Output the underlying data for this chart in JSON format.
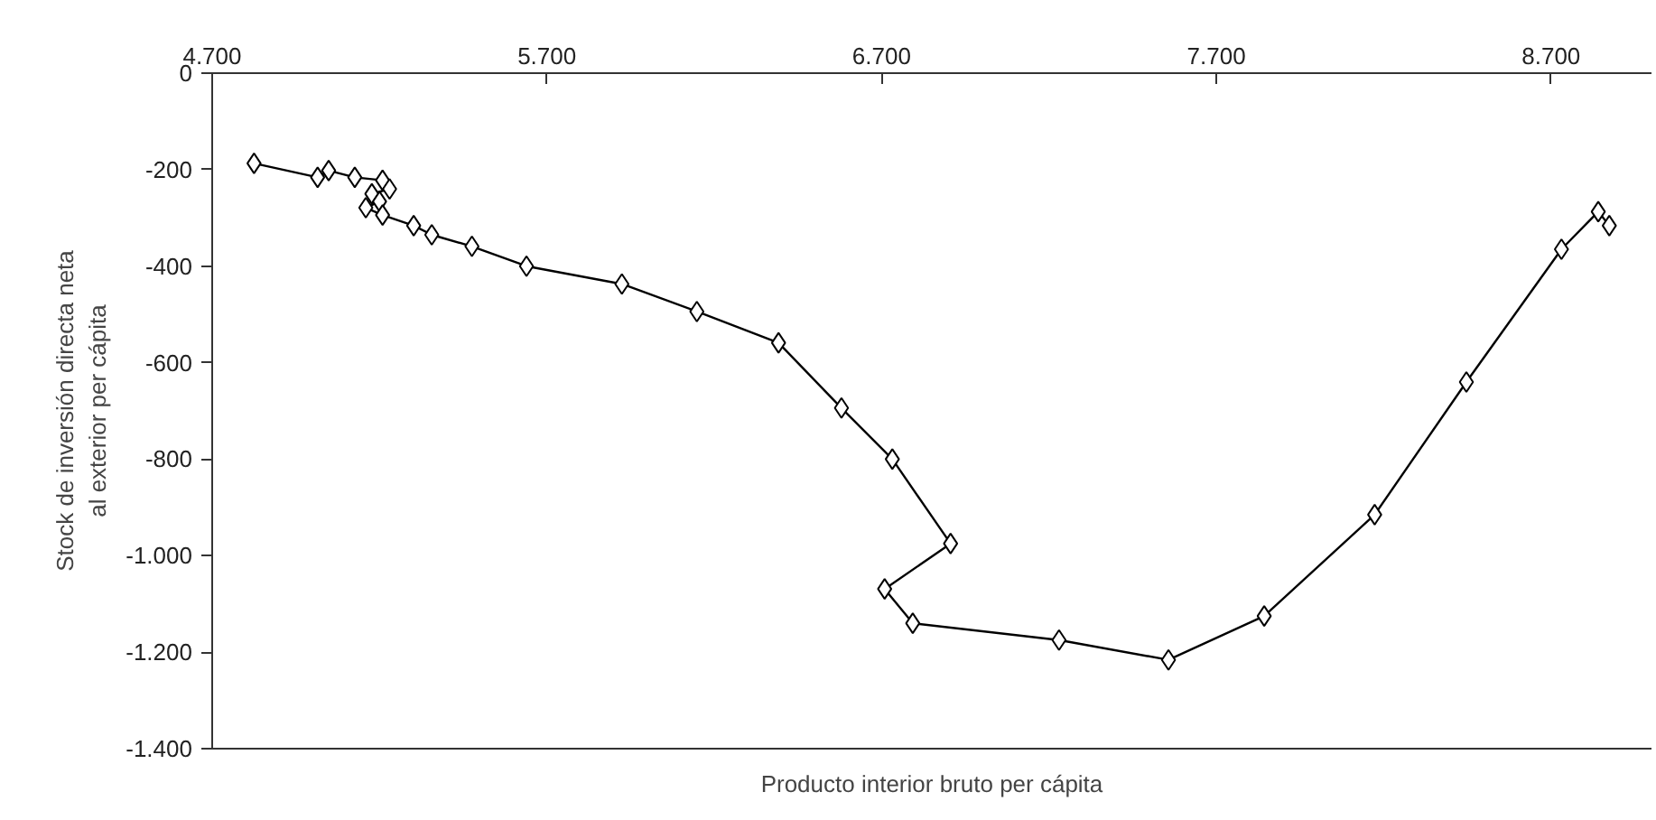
{
  "chart_data": {
    "type": "line",
    "xlabel": "Producto interior bruto per cápita",
    "ylabel": "Stock de inversión directa neta\nal exterior per cápita",
    "marker": "diamond",
    "line_style": "solid",
    "grid": false,
    "xlim": [
      4700,
      9000
    ],
    "xticks": [
      {
        "value": 4700,
        "label": "4.700"
      },
      {
        "value": 5700,
        "label": "5.700"
      },
      {
        "value": 6700,
        "label": "6.700"
      },
      {
        "value": 7700,
        "label": "7.700"
      },
      {
        "value": 8700,
        "label": "8.700"
      }
    ],
    "ylim": [
      -1400,
      0
    ],
    "yticks": [
      {
        "value": 0,
        "label": "0"
      },
      {
        "value": -200,
        "label": "-200"
      },
      {
        "value": -400,
        "label": "-400"
      },
      {
        "value": -600,
        "label": "-600"
      },
      {
        "value": -800,
        "label": "-800"
      },
      {
        "value": -1000,
        "label": "-1.000"
      },
      {
        "value": -1200,
        "label": "-1.200"
      },
      {
        "value": -1400,
        "label": "-1.400"
      }
    ],
    "series": [
      {
        "color": "#000000",
        "x": [
          4825,
          5015,
          5048,
          5126,
          5209,
          5230,
          5177,
          5200,
          5159,
          5209,
          5302,
          5356,
          5476,
          5639,
          5924,
          6148,
          6392,
          6580,
          6732,
          6906,
          6709,
          6793,
          7230,
          7557,
          7843,
          8173,
          8447,
          8731,
          8841,
          8874
        ],
        "values": [
          -187,
          -216,
          -202,
          -216,
          -222,
          -240,
          -250,
          -266,
          -279,
          -294,
          -316,
          -335,
          -359,
          -400,
          -437,
          -494,
          -559,
          -694,
          -800,
          -975,
          -1069,
          -1140,
          -1175,
          -1216,
          -1125,
          -915,
          -640,
          -365,
          -287,
          -316
        ]
      }
    ]
  }
}
